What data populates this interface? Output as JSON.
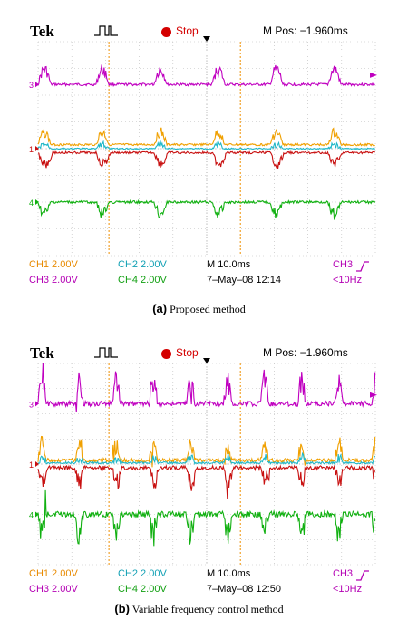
{
  "panels": [
    {
      "id": "a",
      "header": {
        "brand": "Tek",
        "status": "Stop",
        "mpos": "M Pos: −1.960ms"
      },
      "footer": {
        "ch1": "CH1  2.00V",
        "ch2": "CH2  2.00V",
        "timebase": "M 10.0ms",
        "trig_src": "CH3",
        "ch3": "CH3  2.00V",
        "ch4": "CH4  2.00V",
        "date": "7–May–08 12:14",
        "trig_freq": "<10Hz"
      },
      "caption": {
        "letter": "(a)",
        "text": " Proposed method"
      },
      "markers": {
        "ch3": "3",
        "ch12": "1",
        "ch4": "4"
      }
    },
    {
      "id": "b",
      "header": {
        "brand": "Tek",
        "status": "Stop",
        "mpos": "M Pos: −1.960ms"
      },
      "footer": {
        "ch1": "CH1  2.00V",
        "ch2": "CH2  2.00V",
        "timebase": "M 10.0ms",
        "trig_src": "CH3",
        "ch3": "CH3  2.00V",
        "ch4": "CH4  2.00V",
        "date": "7–May–08 12:50",
        "trig_freq": "<10Hz"
      },
      "caption": {
        "letter": "(b)",
        "text": " Variable frequency control method"
      },
      "markers": {
        "ch3": "3",
        "ch12": "1",
        "ch4": "4"
      }
    }
  ],
  "colors": {
    "ch1": "#f0a000",
    "ch2": "#20b8c8",
    "ch3": "#c000c0",
    "ch4": "#10b010",
    "red": "#c81010",
    "cursor": "#f09000"
  },
  "chart_data": [
    {
      "type": "line",
      "title": "",
      "xlabel": "",
      "ylabel": "",
      "time_per_div_ms": 10,
      "volts_per_div": {
        "CH1": 2,
        "CH2": 2,
        "CH3": 2,
        "CH4": 2
      },
      "divisions": {
        "x": 10,
        "y": 8
      },
      "grid": true,
      "series": [
        {
          "name": "CH3",
          "color": "#c000c0",
          "level_div": 2.4,
          "period_div": 1.72,
          "pulse_amp_div": 0.55,
          "noise_div": 0.12,
          "distortion": "low"
        },
        {
          "name": "CH1",
          "color": "#f0a000",
          "level_div": 0.15,
          "period_div": 1.72,
          "pulse_amp_div": 0.45,
          "noise_div": 0.1,
          "distortion": "low"
        },
        {
          "name": "CH2",
          "color": "#20b8c8",
          "level_div": 0.0,
          "period_div": 1.72,
          "pulse_amp_div": 0.15,
          "noise_div": 0.06,
          "distortion": "low"
        },
        {
          "name": "CH4",
          "color": "#10b010",
          "level_div": -2.0,
          "period_div": 1.72,
          "pulse_amp_div": 0.55,
          "noise_div": 0.12,
          "distortion": "low"
        }
      ]
    },
    {
      "type": "line",
      "title": "",
      "xlabel": "",
      "ylabel": "",
      "time_per_div_ms": 10,
      "volts_per_div": {
        "CH1": 2,
        "CH2": 2,
        "CH3": 2,
        "CH4": 2
      },
      "divisions": {
        "x": 10,
        "y": 8
      },
      "grid": true,
      "series": [
        {
          "name": "CH3",
          "color": "#c000c0",
          "level_div": 2.4,
          "period_div": 1.1,
          "pulse_amp_div": 0.9,
          "noise_div": 0.25,
          "distortion": "high"
        },
        {
          "name": "CH1",
          "color": "#f0a000",
          "level_div": 0.15,
          "period_div": 1.1,
          "pulse_amp_div": 0.6,
          "noise_div": 0.2,
          "distortion": "high"
        },
        {
          "name": "CH2",
          "color": "#20b8c8",
          "level_div": 0.05,
          "period_div": 1.1,
          "pulse_amp_div": 0.2,
          "noise_div": 0.1,
          "distortion": "high"
        },
        {
          "name": "CH4",
          "color": "#10b010",
          "level_div": -2.0,
          "period_div": 1.1,
          "pulse_amp_div": 0.9,
          "noise_div": 0.3,
          "distortion": "high"
        }
      ]
    }
  ]
}
